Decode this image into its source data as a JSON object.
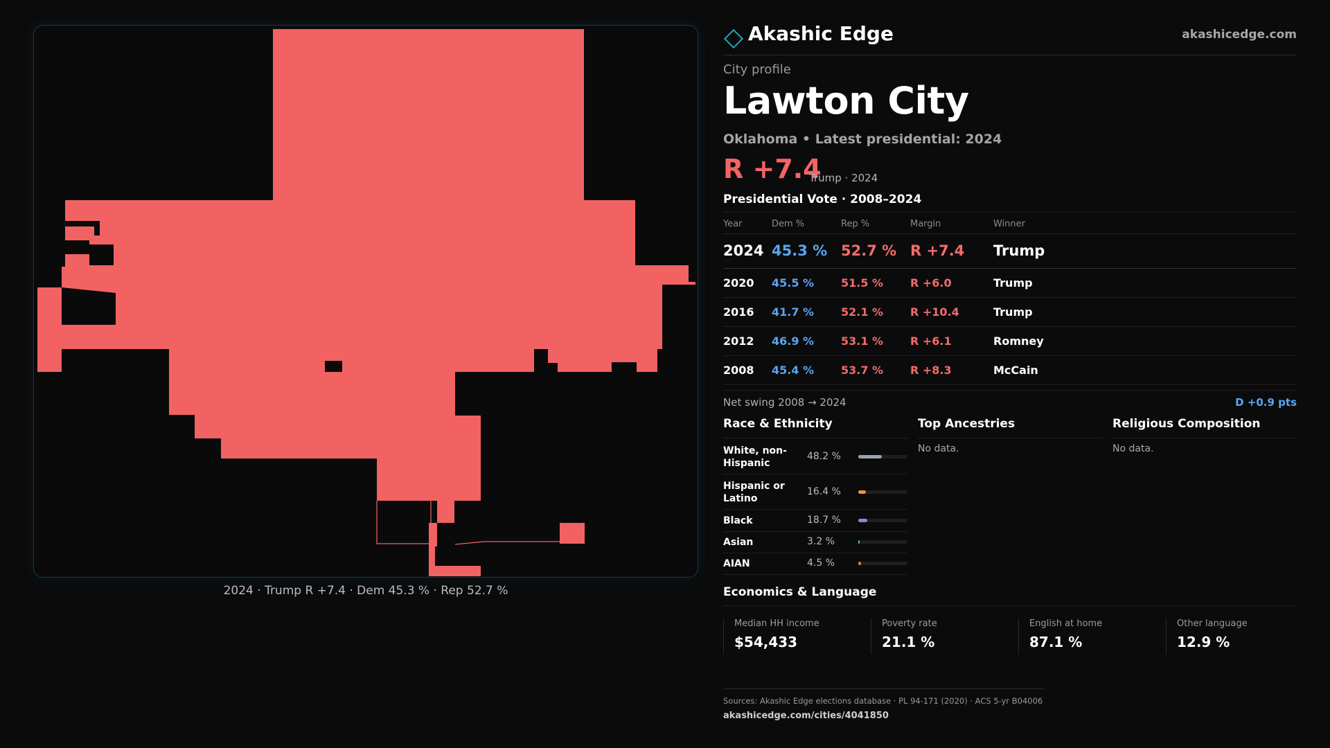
{
  "brand": {
    "name": "Akashic Edge",
    "url": "akashicedge.com",
    "accent": "#2aa5b8"
  },
  "profile": {
    "eyebrow": "City profile",
    "city": "Lawton City",
    "subtitle": "Oklahoma • Latest presidential: 2024",
    "margin": "R +7.4",
    "margin_note": "Trump · 2024"
  },
  "map": {
    "caption": "2024 · Trump R +7.4 · Dem 45.3 % · Rep 52.7 %",
    "fill_color": "#f26262"
  },
  "vote": {
    "title": "Presidential Vote · 2008–2024",
    "headers": {
      "year": "Year",
      "dem": "Dem %",
      "rep": "Rep %",
      "margin": "Margin",
      "winner": "Winner"
    },
    "rows": [
      {
        "year": "2024",
        "dem": "45.3 %",
        "rep": "52.7 %",
        "margin": "R +7.4",
        "winner": "Trump"
      },
      {
        "year": "2020",
        "dem": "45.5 %",
        "rep": "51.5 %",
        "margin": "R +6.0",
        "winner": "Trump"
      },
      {
        "year": "2016",
        "dem": "41.7 %",
        "rep": "52.1 %",
        "margin": "R +10.4",
        "winner": "Trump"
      },
      {
        "year": "2012",
        "dem": "46.9 %",
        "rep": "53.1 %",
        "margin": "R +6.1",
        "winner": "Romney"
      },
      {
        "year": "2008",
        "dem": "45.4 %",
        "rep": "53.7 %",
        "margin": "R +8.3",
        "winner": "McCain"
      }
    ],
    "swing_label": "Net swing 2008 → 2024",
    "swing_value": "D +0.9 pts"
  },
  "race": {
    "title": "Race & Ethnicity",
    "rows": [
      {
        "label": "White, non-Hispanic",
        "pct": "48.2 %",
        "share": 0.482,
        "color": "#9aa3b5"
      },
      {
        "label": "Hispanic or Latino",
        "pct": "16.4 %",
        "share": 0.164,
        "color": "#e89a2c"
      },
      {
        "label": "Black",
        "pct": "18.7 %",
        "share": 0.187,
        "color": "#9a7ee0"
      },
      {
        "label": "Asian",
        "pct": "3.2 %",
        "share": 0.032,
        "color": "#3fc2a8"
      },
      {
        "label": "AIAN",
        "pct": "4.5 %",
        "share": 0.045,
        "color": "#e0783a"
      }
    ]
  },
  "ancestries": {
    "title": "Top Ancestries",
    "empty": "No data."
  },
  "religion": {
    "title": "Religious Composition",
    "empty": "No data."
  },
  "economics": {
    "title": "Economics & Language",
    "cards": [
      {
        "label": "Median HH income",
        "value": "$54,433"
      },
      {
        "label": "Poverty rate",
        "value": "21.1 %"
      },
      {
        "label": "English at home",
        "value": "87.1 %"
      },
      {
        "label": "Other language",
        "value": "12.9 %"
      }
    ]
  },
  "footer": {
    "sources": "Sources: Akashic Edge elections database · PL 94-171 (2020) · ACS 5-yr B04006",
    "url": "akashicedge.com/cities/4041850"
  },
  "colors": {
    "dem": "#5aa5f2",
    "rep": "#f26b6b"
  }
}
